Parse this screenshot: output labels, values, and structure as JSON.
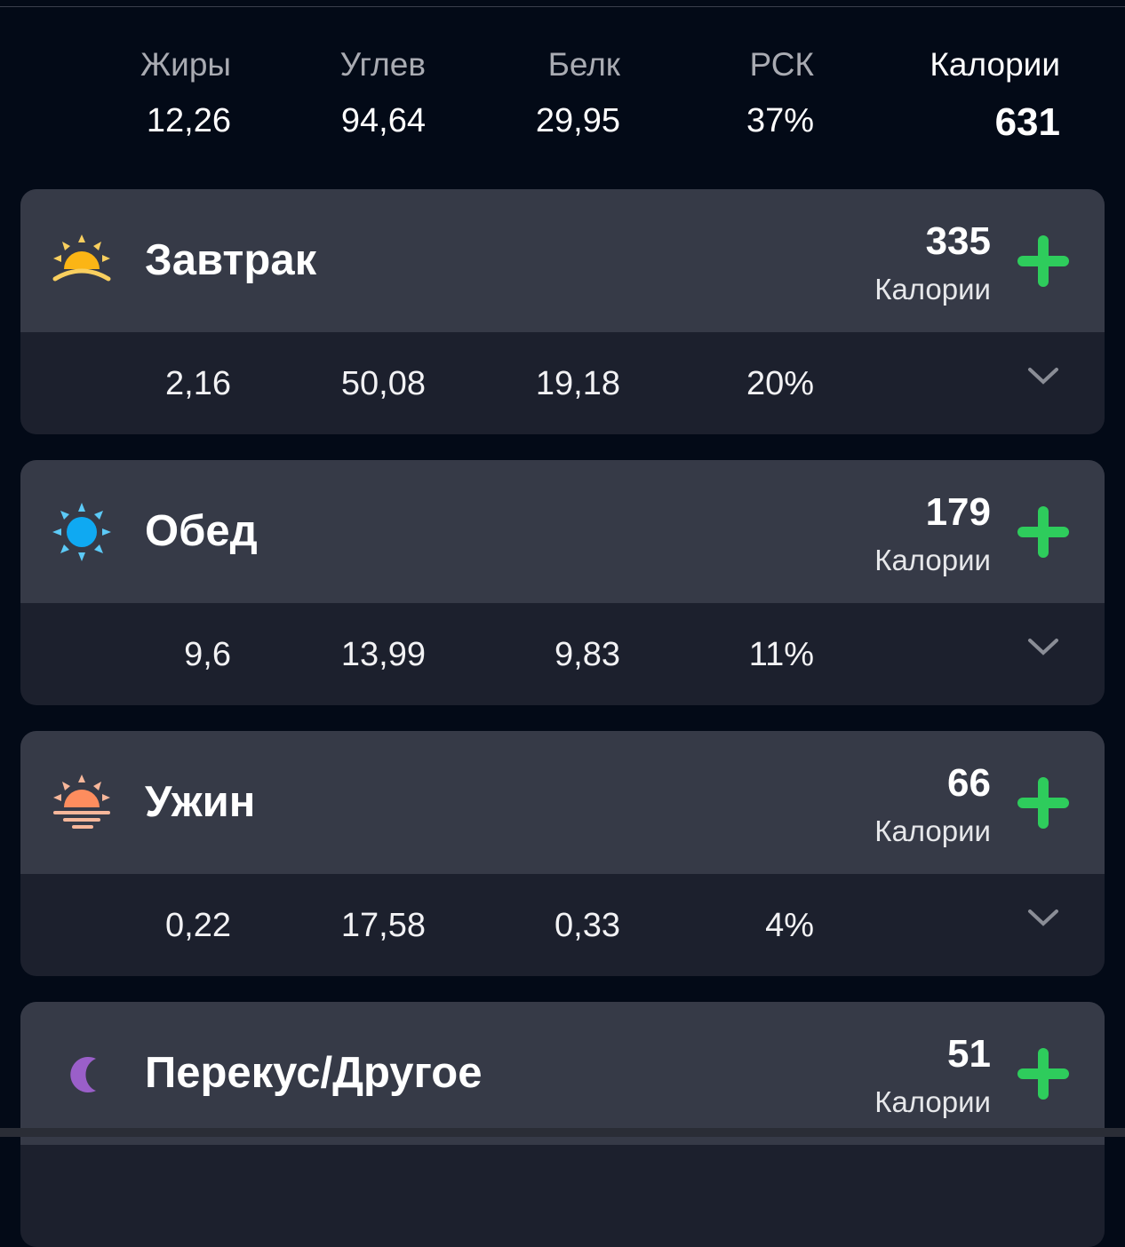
{
  "summary": {
    "fat": {
      "label": "Жиры",
      "value": "12,26"
    },
    "carbs": {
      "label": "Углев",
      "value": "94,64"
    },
    "protein": {
      "label": "Белк",
      "value": "29,95"
    },
    "rdi": {
      "label": "РСК",
      "value": "37%"
    },
    "calories": {
      "label": "Калории",
      "value": "631"
    }
  },
  "colors": {
    "background": "#030a17",
    "card_header": "#363a47",
    "card_body": "#1c202d",
    "add": "#2ecc5c"
  },
  "meals": [
    {
      "title": "Завтрак",
      "icon": "sunrise-icon",
      "calories": "335",
      "calories_label": "Калории",
      "fat": "2,16",
      "carbs": "50,08",
      "protein": "19,18",
      "rdi": "20%"
    },
    {
      "title": "Обед",
      "icon": "sun-icon",
      "calories": "179",
      "calories_label": "Калории",
      "fat": "9,6",
      "carbs": "13,99",
      "protein": "9,83",
      "rdi": "11%"
    },
    {
      "title": "Ужин",
      "icon": "sunset-icon",
      "calories": "66",
      "calories_label": "Калории",
      "fat": "0,22",
      "carbs": "17,58",
      "protein": "0,33",
      "rdi": "4%"
    },
    {
      "title": "Перекус/Другое",
      "icon": "moon-icon",
      "calories": "51",
      "calories_label": "Калории"
    }
  ]
}
